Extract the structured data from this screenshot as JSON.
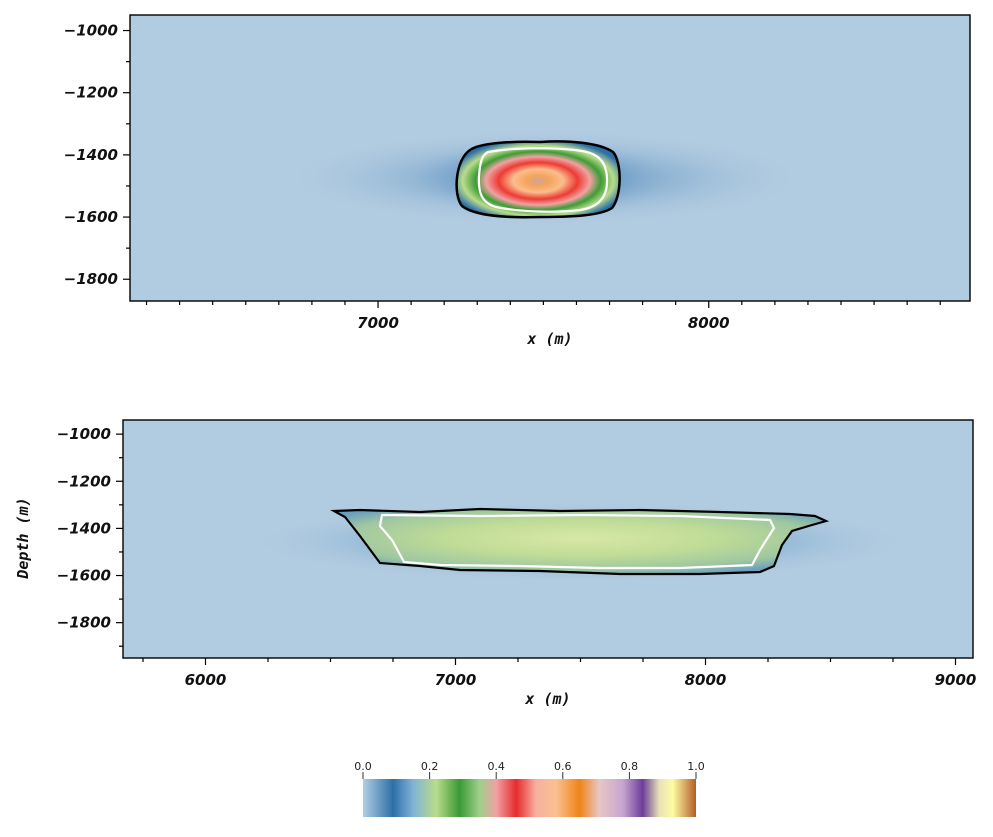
{
  "chart_data": [
    {
      "type": "heatmap",
      "panel": "top",
      "title": "",
      "xlabel": "x (m)",
      "ylabel": "",
      "xlim": [
        6250,
        8790
      ],
      "ylim": [
        -1870,
        -950
      ],
      "x_ticks": [
        7000,
        8000
      ],
      "x_tick_labels": [
        "7000",
        "8000"
      ],
      "y_ticks": [
        -1000,
        -1200,
        -1400,
        -1600,
        -1800
      ],
      "y_tick_labels": [
        "−1000",
        "−1200",
        "−1400",
        "−1600",
        "−1800"
      ],
      "background_value": 0.0,
      "plume": {
        "x_range": [
          7230,
          7730
        ],
        "depth_range": [
          -1590,
          -1360
        ],
        "peak_value": 0.6,
        "black_contour": "outer boundary",
        "white_contour": "inner boundary"
      }
    },
    {
      "type": "heatmap",
      "panel": "bottom",
      "title": "",
      "xlabel": "x (m)",
      "ylabel": "Depth (m)",
      "xlim": [
        5670,
        9070
      ],
      "ylim": [
        -1950,
        -940
      ],
      "x_ticks": [
        6000,
        7000,
        8000,
        9000
      ],
      "x_tick_labels": [
        "6000",
        "7000",
        "8000",
        "9000"
      ],
      "y_ticks": [
        -1000,
        -1200,
        -1400,
        -1600,
        -1800
      ],
      "y_tick_labels": [
        "−1000",
        "−1200",
        "−1400",
        "−1600",
        "−1800"
      ],
      "background_value": 0.0,
      "plume": {
        "x_range": [
          6500,
          8480
        ],
        "depth_range": [
          -1600,
          -1350
        ],
        "peak_value": 0.25,
        "black_contour": "outer boundary",
        "white_contour": "inner boundary"
      }
    }
  ],
  "colorbar": {
    "min": 0.0,
    "max": 1.0,
    "tick_labels": [
      "0.0",
      "0.2",
      "0.4",
      "0.6",
      "0.8",
      "1.0"
    ],
    "colors": [
      "#b1cfe2",
      "#2e6fa8",
      "#b9dc8a",
      "#3a9a35",
      "#f0a2a2",
      "#e82b2e",
      "#fbc090",
      "#f08419",
      "#c8a6d0",
      "#6c3d99",
      "#fefca3",
      "#b35d26"
    ]
  },
  "colors": {
    "background_field": "#b1cbe0",
    "contour_outer": "#000000",
    "contour_inner": "#ffffff"
  }
}
